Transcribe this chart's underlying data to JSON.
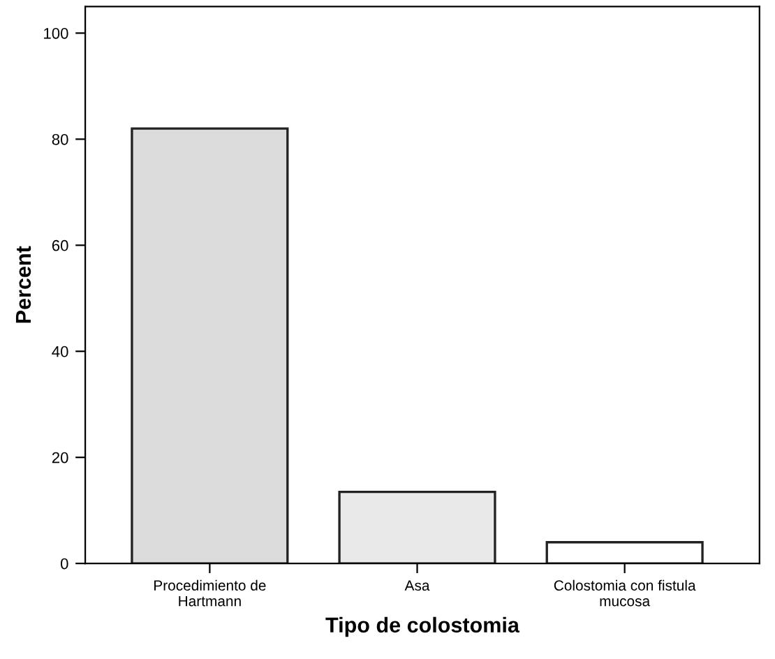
{
  "chart_data": {
    "type": "bar",
    "xlabel": "Tipo de colostomia",
    "ylabel": "Percent",
    "categories": [
      "Procedimiento de\nHartmann",
      "Asa",
      "Colostomia con fistula\nmucosa"
    ],
    "values": [
      82,
      13.5,
      4
    ],
    "colors": [
      "#dcdcdc",
      "#e9e9e9",
      "#ffffff"
    ],
    "ylim": [
      0,
      105
    ],
    "yticks": [
      0,
      20,
      40,
      60,
      80,
      100
    ],
    "grid": false
  }
}
